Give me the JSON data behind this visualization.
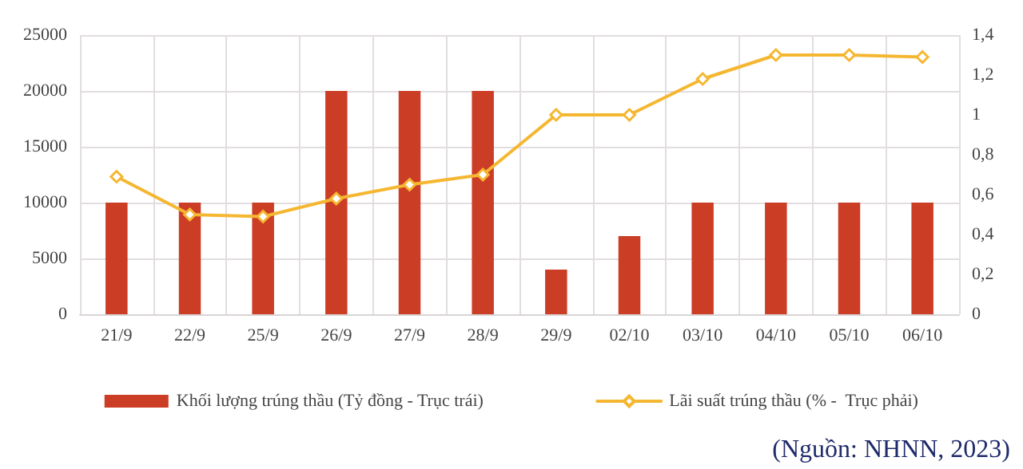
{
  "chart_data": {
    "type": "bar",
    "categories": [
      "21/9",
      "22/9",
      "25/9",
      "26/9",
      "27/9",
      "28/9",
      "29/9",
      "02/10",
      "03/10",
      "04/10",
      "05/10",
      "06/10"
    ],
    "series": [
      {
        "name": "Khối lượng trúng thầu (Tỷ đồng - Trục trái)",
        "color": "#cc3d25",
        "values": [
          10000,
          10000,
          10000,
          20000,
          20000,
          20000,
          4000,
          7000,
          10000,
          10000,
          10000,
          10000
        ]
      },
      {
        "name": "Lãi suất trúng thầu (% -  Trục phải)",
        "type": "line",
        "axis": "y2",
        "color": "#f5b731",
        "marker": "diamond",
        "values": [
          0.69,
          0.5,
          0.49,
          0.58,
          0.65,
          0.7,
          1.0,
          1.0,
          1.18,
          1.3,
          1.3,
          1.29
        ]
      }
    ],
    "ylim": [
      0,
      25000
    ],
    "yticks": [
      0,
      5000,
      10000,
      15000,
      20000,
      25000
    ],
    "y2lim": [
      0,
      1.4
    ],
    "y2ticks": [
      0,
      {
        "value": 0.2,
        "label": "0,2"
      },
      {
        "value": 0.4,
        "label": "0,4"
      },
      {
        "value": 0.6,
        "label": "0,6"
      },
      {
        "value": 0.8,
        "label": "0,8"
      },
      1,
      {
        "value": 1.2,
        "label": "1,2"
      },
      {
        "value": 1.4,
        "label": "1,4"
      }
    ],
    "grid": true,
    "legend": "bottom",
    "annotations": [
      "(Nguồn: NHNN, 2023)"
    ]
  }
}
